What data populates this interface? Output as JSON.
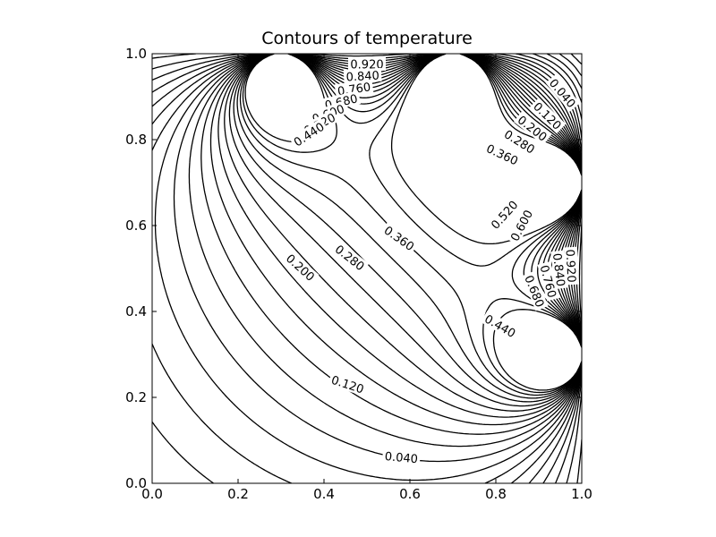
{
  "chart_data": {
    "type": "contour",
    "title": "Contours of temperature",
    "xlabel": "",
    "ylabel": "",
    "xlim": [
      0.0,
      1.0
    ],
    "ylim": [
      0.0,
      1.0
    ],
    "x_ticks": [
      "0.0",
      "0.2",
      "0.4",
      "0.6",
      "0.8",
      "1.0"
    ],
    "y_ticks": [
      "0.0",
      "0.2",
      "0.4",
      "0.6",
      "0.8",
      "1.0"
    ],
    "grid": false,
    "line_color": "#000000",
    "hot_sources": [
      {
        "x": 0.3,
        "y": 1.0
      },
      {
        "x": 0.7,
        "y": 1.0
      },
      {
        "x": 1.0,
        "y": 0.7
      },
      {
        "x": 1.0,
        "y": 0.3
      }
    ],
    "levels": [
      0.04,
      0.08,
      0.12,
      0.16,
      0.2,
      0.24,
      0.28,
      0.32,
      0.36,
      0.4,
      0.44,
      0.48,
      0.52,
      0.56,
      0.6,
      0.64,
      0.68,
      0.72,
      0.76,
      0.8,
      0.84,
      0.88,
      0.92,
      0.96
    ],
    "contour_labels": [
      {
        "text": "0.920",
        "x": 0.5,
        "y": 0.975,
        "angle": 0
      },
      {
        "text": "0.840",
        "x": 0.49,
        "y": 0.948,
        "angle": -3
      },
      {
        "text": "0.760",
        "x": 0.47,
        "y": 0.918,
        "angle": -8
      },
      {
        "text": "0.680",
        "x": 0.44,
        "y": 0.888,
        "angle": -13
      },
      {
        "text": "0.600",
        "x": 0.41,
        "y": 0.86,
        "angle": -20
      },
      {
        "text": "0.520",
        "x": 0.39,
        "y": 0.836,
        "angle": -27
      },
      {
        "text": "0.440",
        "x": 0.365,
        "y": 0.812,
        "angle": -33
      },
      {
        "text": "0.040",
        "x": 0.955,
        "y": 0.908,
        "angle": 50
      },
      {
        "text": "0.120",
        "x": 0.92,
        "y": 0.855,
        "angle": 44
      },
      {
        "text": "0.200",
        "x": 0.885,
        "y": 0.826,
        "angle": 38
      },
      {
        "text": "0.280",
        "x": 0.855,
        "y": 0.795,
        "angle": 32
      },
      {
        "text": "0.360",
        "x": 0.815,
        "y": 0.765,
        "angle": 25
      },
      {
        "text": "0.520",
        "x": 0.82,
        "y": 0.625,
        "angle": -48
      },
      {
        "text": "0.600",
        "x": 0.86,
        "y": 0.6,
        "angle": -62
      },
      {
        "text": "0.920",
        "x": 0.975,
        "y": 0.506,
        "angle": 87
      },
      {
        "text": "0.840",
        "x": 0.947,
        "y": 0.497,
        "angle": 83
      },
      {
        "text": "0.760",
        "x": 0.922,
        "y": 0.47,
        "angle": 75
      },
      {
        "text": "0.680",
        "x": 0.89,
        "y": 0.447,
        "angle": 68
      },
      {
        "text": "0.440",
        "x": 0.81,
        "y": 0.366,
        "angle": 30
      },
      {
        "text": "0.360",
        "x": 0.575,
        "y": 0.57,
        "angle": 35
      },
      {
        "text": "0.280",
        "x": 0.46,
        "y": 0.525,
        "angle": 38
      },
      {
        "text": "0.200",
        "x": 0.345,
        "y": 0.502,
        "angle": 42
      },
      {
        "text": "0.120",
        "x": 0.455,
        "y": 0.23,
        "angle": 18
      },
      {
        "text": "0.040",
        "x": 0.58,
        "y": 0.06,
        "angle": 5
      }
    ]
  }
}
